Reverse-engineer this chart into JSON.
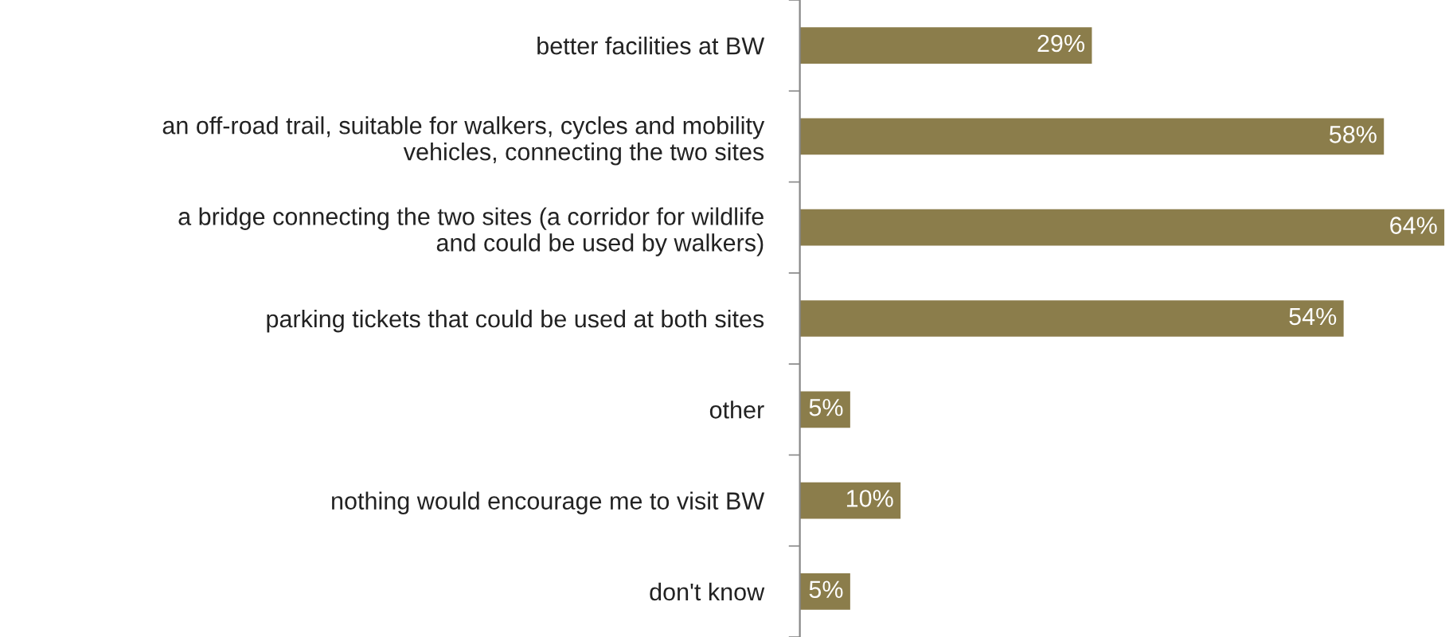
{
  "chart_data": {
    "type": "bar",
    "orientation": "horizontal",
    "categories": [
      "better facilities at BW",
      "an off-road trail, suitable for walkers, cycles and mobility\nvehicles, connecting the two sites",
      "a bridge connecting the two sites (a corridor for wildlife\nand could be used by walkers)",
      "parking tickets that could be used at both sites",
      "other",
      "nothing would encourage me to visit BW",
      "don't know"
    ],
    "values": [
      29,
      58,
      64,
      54,
      5,
      10,
      5
    ],
    "value_labels": [
      "29%",
      "58%",
      "64%",
      "54%",
      "5%",
      "10%",
      "5%"
    ],
    "color": "#8b7d4b",
    "grid": false,
    "legend": false
  }
}
